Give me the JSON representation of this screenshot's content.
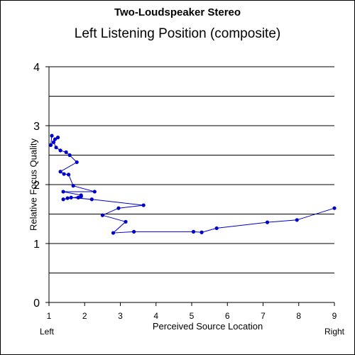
{
  "chart_data": {
    "type": "line",
    "title": "Two-Loudspeaker Stereo",
    "subtitle": "Left Listening Position (composite)",
    "xlabel": "Perceived Source Location",
    "ylabel": "Relative Focus Quality",
    "x_end_labels": {
      "left": "Left",
      "right": "Right"
    },
    "xlim": [
      1,
      9
    ],
    "ylim": [
      0,
      4
    ],
    "x_ticks": [
      "1",
      "2",
      "3",
      "4",
      "5",
      "6",
      "7",
      "8",
      "9"
    ],
    "y_ticks": [
      "0",
      "1",
      "2",
      "3",
      "4"
    ],
    "grid": "horizontal",
    "color": "#0000cc",
    "series": [
      {
        "x": [
          1.08,
          1.05,
          1.17,
          1.25,
          1.13,
          1.2,
          1.32,
          1.48,
          1.58,
          1.78,
          1.32,
          1.42,
          1.55,
          1.68,
          2.28,
          1.4,
          1.9,
          1.82,
          1.9,
          1.4,
          1.52,
          1.62,
          2.2,
          3.65,
          2.95,
          2.5,
          3.15,
          2.8,
          3.38,
          5.05,
          5.28,
          5.7,
          7.12,
          7.95,
          9.0
        ],
        "y": [
          2.83,
          2.67,
          2.77,
          2.8,
          2.72,
          2.63,
          2.58,
          2.55,
          2.5,
          2.38,
          2.22,
          2.18,
          2.17,
          1.98,
          1.88,
          1.88,
          1.82,
          1.78,
          1.8,
          1.75,
          1.77,
          1.78,
          1.75,
          1.65,
          1.6,
          1.48,
          1.37,
          1.18,
          1.2,
          1.2,
          1.19,
          1.26,
          1.36,
          1.4,
          1.6
        ]
      }
    ]
  }
}
